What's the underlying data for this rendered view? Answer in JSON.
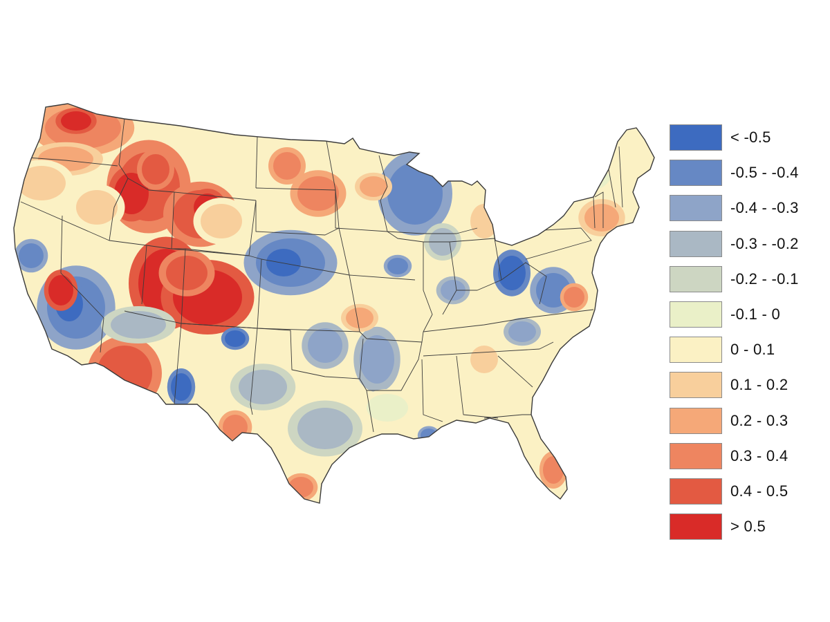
{
  "map": {
    "region": "contiguous-united-states",
    "background_color": "#fbf1c4",
    "border_color": "#3a3a3a"
  },
  "legend": {
    "items": [
      {
        "label": "< -0.5",
        "color": "#3d6bc0"
      },
      {
        "label": "-0.5 - -0.4",
        "color": "#6688c4"
      },
      {
        "label": "-0.4 - -0.3",
        "color": "#8ea4c8"
      },
      {
        "label": "-0.3 - -0.2",
        "color": "#aab8c4"
      },
      {
        "label": "-0.2 - -0.1",
        "color": "#cdd6c2"
      },
      {
        "label": "-0.1 - 0",
        "color": "#eaf0c8"
      },
      {
        "label": "0 - 0.1",
        "color": "#fbf1c4"
      },
      {
        "label": "0.1 - 0.2",
        "color": "#f8cf9c"
      },
      {
        "label": "0.2 - 0.3",
        "color": "#f5a878"
      },
      {
        "label": "0.3 - 0.4",
        "color": "#ee8560"
      },
      {
        "label": "0.4 - 0.5",
        "color": "#e35a42"
      },
      {
        "label": "> 0.5",
        "color": "#d92b28"
      }
    ]
  }
}
